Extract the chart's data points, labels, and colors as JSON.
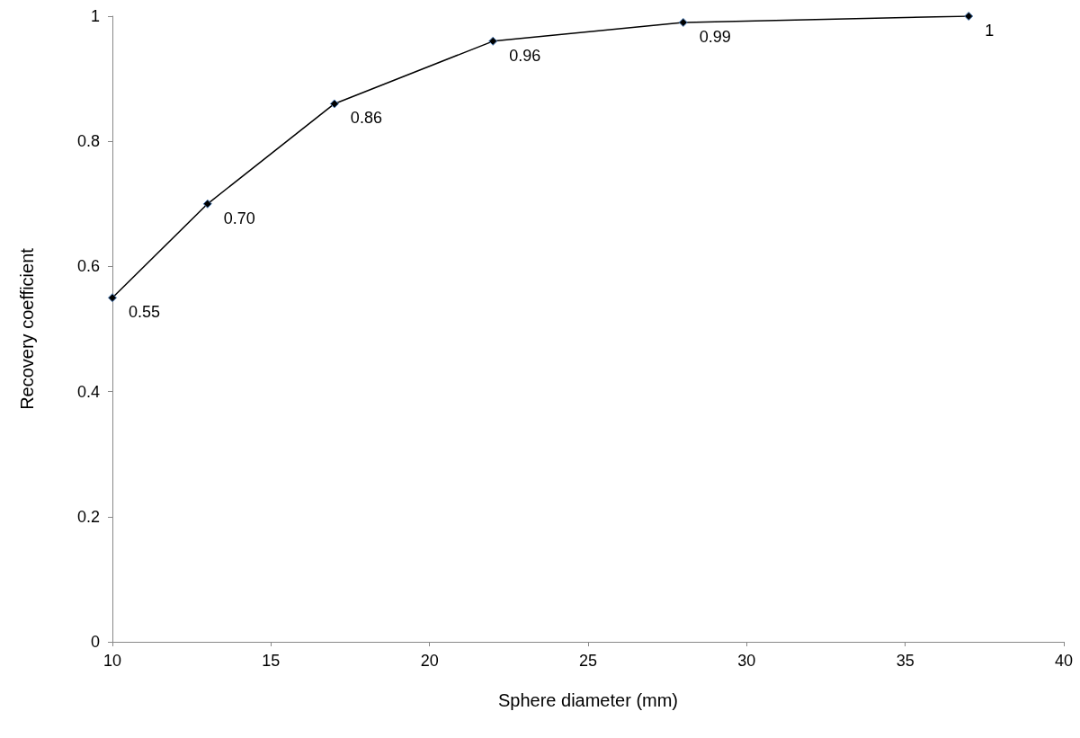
{
  "chart_data": {
    "type": "line",
    "xlabel": "Sphere diameter (mm)",
    "ylabel": "Recovery coefficient",
    "x": [
      10,
      13,
      17,
      22,
      28,
      37
    ],
    "series": [
      {
        "color": "#000000",
        "values": [
          0.55,
          0.7,
          0.86,
          0.96,
          0.99,
          1
        ],
        "value_labels": [
          "0.55",
          "0.70",
          "0.86",
          "0.96",
          "0.99",
          "1"
        ]
      }
    ],
    "xlim": [
      10,
      40
    ],
    "xticks": [
      10,
      15,
      20,
      25,
      30,
      35,
      40
    ],
    "ylim": [
      0,
      1
    ],
    "yticks": [
      0,
      0.2,
      0.4,
      0.6,
      0.8,
      1
    ],
    "grid": false,
    "marker": "diamond",
    "line_style": "solid"
  }
}
